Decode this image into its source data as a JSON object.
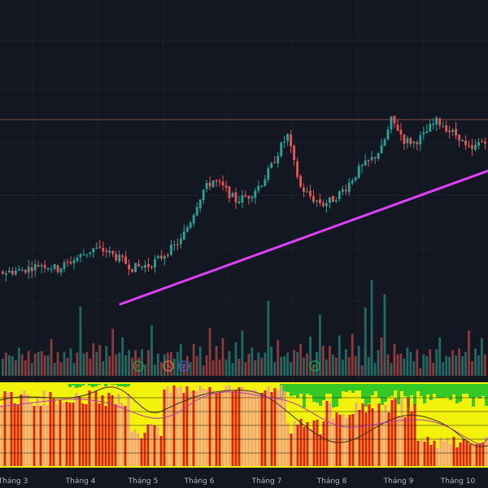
{
  "chart_data": {
    "type": "candlestick",
    "title": "",
    "xlabel": "",
    "ylabel": "",
    "grid": true,
    "legend": "none",
    "colors": {
      "background": "#131722",
      "up": "#26a69a",
      "down": "#ef5350",
      "trendline": "#e040fb",
      "horizontal_level": "#8a4a4a",
      "indicator_red": "#e31b1b",
      "indicator_salmon": "#f4a28a",
      "indicator_yellow": "#f2f20a",
      "indicator_green": "#34c924",
      "marker_green": "#22a34a",
      "marker_orange": "#e07a3e",
      "marker_blue": "#3a62d9"
    },
    "x_labels": [
      "Tháng 3",
      "Tháng 4",
      "Tháng 5",
      "Tháng 6",
      "Tháng 7",
      "Tháng 8",
      "Tháng 9",
      "Tháng 10"
    ],
    "price_path": [
      [
        0,
        38
      ],
      [
        6,
        40
      ],
      [
        12,
        45
      ],
      [
        17,
        41
      ],
      [
        24,
        52
      ],
      [
        28,
        58
      ],
      [
        32,
        56
      ],
      [
        37,
        48
      ],
      [
        40,
        42
      ],
      [
        45,
        44
      ],
      [
        48,
        49
      ],
      [
        52,
        58
      ],
      [
        55,
        65
      ],
      [
        58,
        82
      ],
      [
        60,
        96
      ],
      [
        62,
        108
      ],
      [
        65,
        116
      ],
      [
        68,
        110
      ],
      [
        72,
        99
      ],
      [
        76,
        103
      ],
      [
        80,
        114
      ],
      [
        83,
        128
      ],
      [
        86,
        145
      ],
      [
        88,
        154
      ],
      [
        90,
        130
      ],
      [
        92,
        110
      ],
      [
        96,
        100
      ],
      [
        99,
        96
      ],
      [
        102,
        100
      ],
      [
        106,
        110
      ],
      [
        110,
        125
      ],
      [
        114,
        134
      ],
      [
        117,
        143
      ],
      [
        119,
        158
      ],
      [
        120,
        167
      ],
      [
        122,
        160
      ],
      [
        124,
        150
      ],
      [
        127,
        148
      ],
      [
        130,
        154
      ],
      [
        132,
        161
      ],
      [
        134,
        166
      ],
      [
        136,
        163
      ],
      [
        138,
        158
      ],
      [
        141,
        153
      ],
      [
        143,
        144
      ],
      [
        145,
        141
      ],
      [
        147,
        148
      ],
      [
        150,
        152
      ]
    ],
    "volume_pattern": [
      14,
      26,
      18,
      22,
      10,
      30,
      16,
      12,
      20,
      8,
      24,
      15,
      28,
      11,
      19,
      34,
      13,
      22,
      9,
      26,
      17,
      31,
      12,
      21,
      45,
      16,
      27,
      14,
      38,
      19,
      23,
      11,
      29,
      17,
      52,
      15,
      24,
      33,
      12,
      20
    ],
    "markers": [
      {
        "label": "H",
        "color": "#22a34a"
      },
      {
        "label": "S",
        "color": "#e07a3e"
      },
      {
        "label": "D",
        "color": "#3a62d9"
      },
      {
        "label": "H",
        "color": "#22a34a"
      }
    ]
  }
}
